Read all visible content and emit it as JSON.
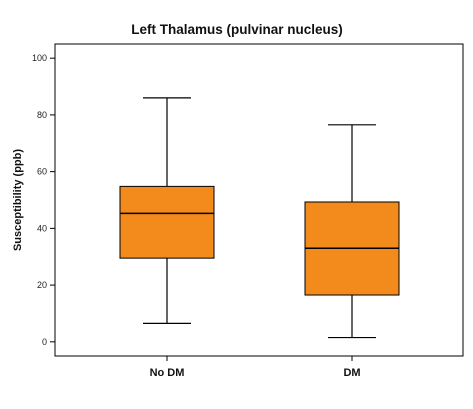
{
  "chart_data": {
    "type": "box",
    "title": "Left Thalamus (pulvinar nucleus)",
    "xlabel": "",
    "ylabel": "Susceptibility (ppb)",
    "ylim": [
      -5,
      105
    ],
    "yticks": [
      0,
      20,
      40,
      60,
      80,
      100
    ],
    "grid": false,
    "categories": [
      "No DM",
      "DM"
    ],
    "boxes": [
      {
        "category": "No DM",
        "whisker_low": 6.5,
        "q1": 29.5,
        "median": 45.3,
        "q3": 54.8,
        "whisker_high": 86
      },
      {
        "category": "DM",
        "whisker_low": 1.5,
        "q1": 16.5,
        "median": 33,
        "q3": 49.3,
        "whisker_high": 76.5
      }
    ],
    "box_color": "#f28a1c",
    "line_color": "#000000"
  }
}
